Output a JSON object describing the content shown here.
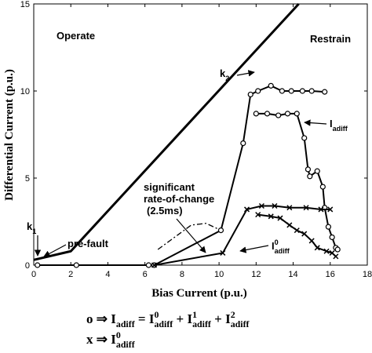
{
  "chart_data": {
    "type": "line",
    "xlabel": "Bias Current (p.u.)",
    "ylabel": "Differential Current (p.u.)",
    "xlim": [
      0,
      18
    ],
    "ylim": [
      0,
      15
    ],
    "xticks": [
      0,
      2,
      4,
      6,
      8,
      10,
      12,
      14,
      16,
      18
    ],
    "yticks": [
      0,
      5,
      10,
      15
    ],
    "series": [
      {
        "color": "#000000",
        "line_width": 3,
        "marker": null,
        "dash": null,
        "x": [
          0,
          2,
          14.3
        ],
        "values": [
          0.3,
          0.8,
          15
        ]
      },
      {
        "color": "#000000",
        "line_width": 1.3,
        "marker": null,
        "dash": "7 3 2 3",
        "x": [
          6.7,
          8.5,
          9.3,
          10.1
        ],
        "values": [
          0.9,
          2.3,
          2.4,
          2.0
        ]
      },
      {
        "color": "#000000",
        "line_width": 2,
        "marker": "o",
        "dash": null,
        "x": [
          0.2,
          2.3,
          6.2,
          6.5,
          10.1,
          11.3,
          11.7,
          12.1,
          12.8,
          13.4,
          13.9,
          14.5,
          15.0,
          15.7,
          null,
          12.0,
          12.6,
          13.2,
          13.7,
          14.2,
          14.6,
          14.8,
          14.9,
          15.3,
          15.6,
          15.7,
          15.9,
          16.1,
          16.3,
          16.4
        ],
        "values": [
          0,
          0,
          0,
          0,
          2.0,
          7.0,
          9.8,
          10.0,
          10.3,
          10.0,
          10.0,
          10.0,
          10.0,
          9.95,
          null,
          8.7,
          8.7,
          8.6,
          8.7,
          8.7,
          7.3,
          5.5,
          5.1,
          5.4,
          4.5,
          3.3,
          2.2,
          1.6,
          1.0,
          0.9
        ]
      },
      {
        "color": "#000000",
        "line_width": 2,
        "marker": "x",
        "dash": null,
        "x": [
          6.5,
          10.2,
          11.5,
          12.3,
          13.0,
          13.8,
          14.7,
          15.5,
          16.0,
          null,
          12.1,
          12.8,
          13.3,
          13.8,
          14.2,
          14.6,
          15.0,
          15.3,
          15.8,
          16.1,
          16.3
        ],
        "values": [
          0,
          0.7,
          3.2,
          3.4,
          3.4,
          3.3,
          3.3,
          3.2,
          3.2,
          null,
          2.9,
          2.8,
          2.7,
          2.3,
          2.0,
          1.8,
          1.4,
          1.0,
          0.8,
          0.7,
          0.5
        ]
      }
    ],
    "annotations": [
      [
        {
          "text": "Operate"
        }
      ],
      [
        {
          "text": "Restrain"
        }
      ],
      [
        {
          "text": "k"
        },
        {
          "text": "2",
          "pos": "sub"
        }
      ],
      [
        {
          "text": "k"
        },
        {
          "text": "1",
          "pos": "sub"
        }
      ],
      [
        {
          "text": "I"
        },
        {
          "text": "adiff",
          "pos": "sub"
        }
      ],
      [
        {
          "text": "I"
        },
        {
          "text": "0",
          "pos": "sup"
        },
        {
          "text": "adiff",
          "pos": "sub"
        }
      ],
      [
        {
          "text": "pre-fault"
        }
      ],
      [
        {
          "text": "significant"
        }
      ],
      [
        {
          "text": "rate-of-change"
        }
      ],
      [
        {
          "text": "(2.5ms)"
        }
      ]
    ],
    "formula": [
      [
        {
          "text": "o ⇒ I"
        },
        {
          "text": "adiff",
          "pos": "sub"
        },
        {
          "text": " = I"
        },
        {
          "text": "0",
          "pos": "sup"
        },
        {
          "text": "adiff",
          "pos": "sub"
        },
        {
          "text": " + I"
        },
        {
          "text": "1",
          "pos": "sup"
        },
        {
          "text": "adiff",
          "pos": "sub"
        },
        {
          "text": " + I"
        },
        {
          "text": "2",
          "pos": "sup"
        },
        {
          "text": "adiff",
          "pos": "sub"
        }
      ],
      [
        {
          "text": "x ⇒ I"
        },
        {
          "text": "0",
          "pos": "sup"
        },
        {
          "text": "adiff",
          "pos": "sub"
        }
      ]
    ]
  }
}
